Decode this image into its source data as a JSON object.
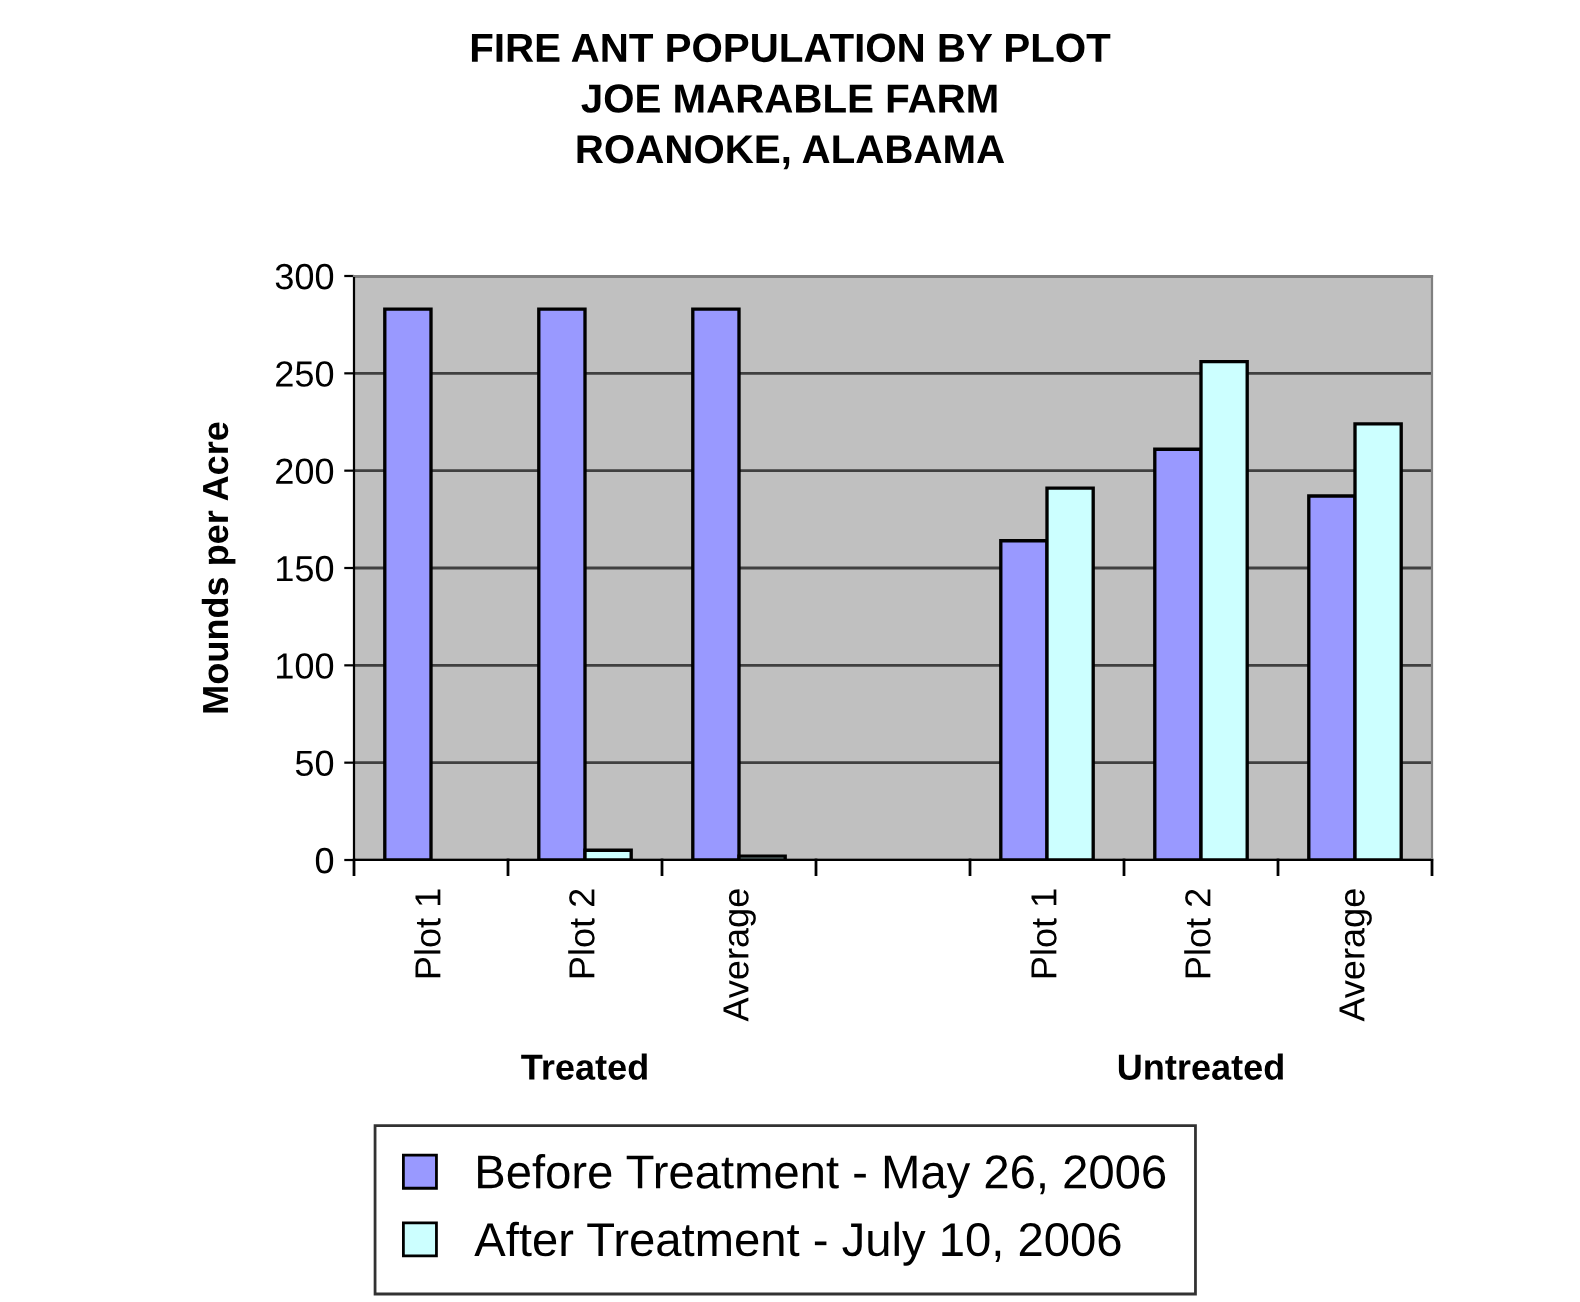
{
  "chart_data": {
    "type": "bar",
    "title": "FIRE ANT POPULATION BY PLOT\nJOE MARABLE FARM\nROANOKE, ALABAMA",
    "ylabel": "Mounds per Acre",
    "categories": [
      "Plot 1",
      "Plot 2",
      "Average",
      null,
      "Plot 1",
      "Plot 2",
      "Average"
    ],
    "series": [
      {
        "name": "Before Treatment - May 26, 2006",
        "color": "#9999ff",
        "values": [
          283,
          283,
          283,
          null,
          164,
          211,
          187
        ]
      },
      {
        "name": "After Treatment - July 10, 2006",
        "color": "#ccffff",
        "values": [
          null,
          5,
          2,
          null,
          191,
          256,
          224
        ]
      }
    ],
    "annotations": [
      "Treated",
      "Untreated"
    ],
    "ylim": [
      0,
      300
    ],
    "yticks": [
      0,
      50,
      100,
      150,
      200,
      250,
      300
    ],
    "grid": "y",
    "legend": "bottom"
  }
}
